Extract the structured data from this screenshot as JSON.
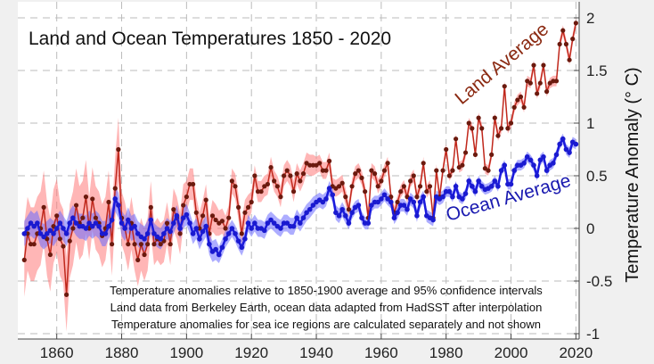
{
  "chart_data": {
    "type": "line",
    "title": "Land and Ocean Temperatures 1850 - 2020",
    "xlabel": "",
    "ylabel": "Temperature Anomaly (° C)",
    "xlim": [
      1848,
      2021
    ],
    "ylim": [
      -1,
      2
    ],
    "x_ticks": [
      "1860",
      "1880",
      "1900",
      "1920",
      "1940",
      "1960",
      "1980",
      "2000",
      "2020"
    ],
    "y_ticks": [
      "-1",
      "-0.5",
      "0",
      "0.5",
      "1",
      "1.5",
      "2"
    ],
    "grid": true,
    "grid_style": "dashed",
    "x_start": 1850,
    "series": [
      {
        "name": "Land Average",
        "color": "#c0281c",
        "marker_color": "#6b1a0e",
        "band_color": "#ff7a7a",
        "values": [
          -0.3,
          -0.05,
          -0.15,
          -0.15,
          -0.05,
          0.0,
          0.2,
          -0.1,
          -0.25,
          0.02,
          0.12,
          -0.1,
          -0.17,
          -0.63,
          -0.12,
          0.0,
          0.22,
          0.05,
          0.1,
          0.3,
          0.0,
          0.28,
          0.1,
          0.05,
          -0.07,
          0.0,
          0.25,
          -0.15,
          0.38,
          0.75,
          0.1,
          0.0,
          -0.15,
          0.05,
          -0.15,
          -0.3,
          -0.15,
          -0.25,
          -0.15,
          0.2,
          -0.15,
          -0.1,
          -0.15,
          -0.12,
          0.05,
          -0.15,
          0.18,
          0.1,
          -0.05,
          0.22,
          0.3,
          0.42,
          0.42,
          0.15,
          0.0,
          0.12,
          0.27,
          -0.05,
          0.12,
          0.08,
          0.05,
          0.07,
          0.0,
          0.1,
          0.45,
          0.4,
          0.2,
          -0.05,
          0.15,
          0.2,
          0.25,
          0.5,
          0.35,
          0.35,
          0.4,
          0.42,
          0.58,
          0.45,
          0.4,
          0.3,
          0.5,
          0.55,
          0.5,
          0.35,
          0.52,
          0.45,
          0.52,
          0.62,
          0.6,
          0.6,
          0.6,
          0.62,
          0.55,
          0.55,
          0.64,
          0.4,
          0.38,
          0.4,
          0.43,
          0.3,
          0.18,
          0.4,
          0.52,
          0.55,
          0.48,
          0.35,
          0.1,
          0.55,
          0.52,
          0.4,
          0.45,
          0.55,
          0.62,
          0.3,
          0.15,
          0.25,
          0.35,
          0.4,
          0.3,
          0.45,
          0.5,
          0.3,
          0.4,
          0.62,
          0.35,
          0.4,
          0.1,
          0.55,
          0.3,
          0.55,
          0.75,
          0.5,
          0.55,
          0.85,
          0.58,
          0.6,
          0.72,
          1.0,
          0.95,
          0.7,
          1.05,
          0.95,
          0.57,
          0.55,
          0.7,
          1.05,
          0.88,
          0.95,
          1.35,
          0.95,
          1.0,
          1.15,
          1.22,
          1.25,
          1.15,
          1.4,
          1.38,
          1.55,
          1.28,
          1.38,
          1.55,
          1.3,
          1.38,
          1.4,
          1.4,
          1.75,
          1.88,
          1.75,
          1.6,
          1.8,
          1.95
        ],
        "ci95_by_decade": [
          0.35,
          0.35,
          0.3,
          0.25,
          0.2,
          0.15,
          0.12,
          0.1,
          0.1,
          0.08,
          0.07,
          0.06,
          0.06,
          0.05,
          0.05,
          0.05,
          0.05,
          0.05
        ]
      },
      {
        "name": "Ocean Average",
        "color": "#1a1adc",
        "marker_color": "#1a1ad0",
        "band_color": "#6a6aff",
        "values": [
          -0.05,
          0.0,
          0.05,
          0.02,
          0.05,
          -0.05,
          -0.08,
          -0.05,
          -0.02,
          -0.05,
          0.0,
          0.05,
          0.0,
          -0.05,
          0.05,
          0.1,
          0.05,
          0.02,
          0.02,
          0.0,
          0.05,
          0.02,
          0.05,
          0.02,
          -0.05,
          -0.05,
          0.02,
          0.08,
          0.28,
          0.22,
          0.05,
          0.0,
          0.08,
          0.0,
          0.02,
          -0.05,
          -0.08,
          -0.1,
          -0.05,
          0.08,
          -0.05,
          -0.08,
          -0.1,
          -0.05,
          0.0,
          -0.03,
          0.05,
          0.12,
          0.0,
          0.1,
          0.13,
          0.05,
          -0.05,
          0.0,
          -0.1,
          -0.03,
          0.02,
          -0.15,
          -0.22,
          -0.2,
          -0.25,
          -0.18,
          -0.1,
          -0.05,
          0.0,
          -0.05,
          -0.12,
          -0.18,
          -0.1,
          0.05,
          0.0,
          0.05,
          0.0,
          0.0,
          -0.02,
          0.05,
          0.08,
          0.05,
          0.02,
          0.0,
          0.05,
          0.05,
          0.02,
          0.02,
          0.1,
          0.05,
          0.1,
          0.15,
          0.18,
          0.22,
          0.25,
          0.27,
          0.25,
          0.28,
          0.38,
          0.32,
          0.15,
          0.12,
          0.18,
          0.12,
          0.05,
          0.15,
          0.2,
          0.22,
          0.1,
          0.05,
          0.05,
          0.22,
          0.25,
          0.25,
          0.28,
          0.32,
          0.28,
          0.25,
          0.1,
          0.15,
          0.22,
          0.22,
          0.18,
          0.28,
          0.25,
          0.12,
          0.25,
          0.3,
          0.12,
          0.1,
          0.08,
          0.3,
          0.28,
          0.3,
          0.35,
          0.35,
          0.3,
          0.4,
          0.3,
          0.28,
          0.33,
          0.45,
          0.4,
          0.35,
          0.45,
          0.4,
          0.37,
          0.38,
          0.4,
          0.45,
          0.4,
          0.55,
          0.6,
          0.42,
          0.42,
          0.55,
          0.6,
          0.6,
          0.62,
          0.68,
          0.65,
          0.6,
          0.5,
          0.65,
          0.68,
          0.55,
          0.6,
          0.62,
          0.7,
          0.8,
          0.85,
          0.75,
          0.72,
          0.82,
          0.8
        ],
        "ci95_by_decade": [
          0.12,
          0.12,
          0.12,
          0.12,
          0.1,
          0.1,
          0.08,
          0.08,
          0.08,
          0.07,
          0.06,
          0.06,
          0.06,
          0.05,
          0.05,
          0.05,
          0.05,
          0.05
        ]
      }
    ],
    "series_labels": {
      "land": "Land Average",
      "ocean": "Ocean Average"
    },
    "annotations": [
      "Temperature anomalies relative to 1850-1900 average and 95% confidence intervals",
      "Land data from Berkeley Earth, ocean data adapted from HadSST after interpolation",
      "Temperature anomalies for sea ice regions are calculated separately and not shown"
    ]
  }
}
